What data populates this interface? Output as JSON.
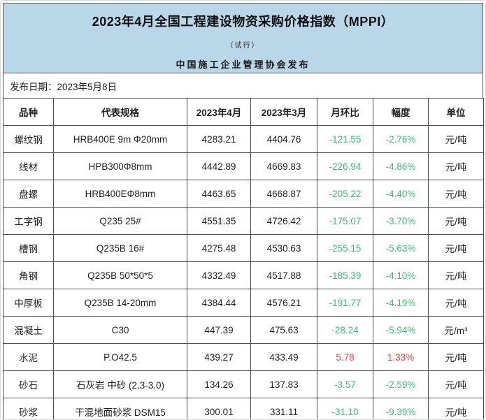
{
  "header": {
    "title": "2023年4月全国工程建设物资采购价格指数（MPPI）",
    "subtitle": "（试行）",
    "publisher": "中国施工企业管理协会发布",
    "banner_bg_color": "#bad6e9"
  },
  "release": {
    "date_line": "发布日期：2023年5月8日"
  },
  "table": {
    "columns": [
      "品种",
      "代表规格",
      "2023年4月",
      "2023年3月",
      "月环比",
      "幅度",
      "单位"
    ],
    "rows": [
      {
        "variety": "螺纹钢",
        "spec": "HRB400E 9m Φ20mm",
        "apr": "4283.21",
        "mar": "4404.76",
        "mom": "-121.55",
        "pct": "-2.76%",
        "unit": "元/吨",
        "trend": "down"
      },
      {
        "variety": "线材",
        "spec": "HPB300Φ8mm",
        "apr": "4442.89",
        "mar": "4669.83",
        "mom": "-226.94",
        "pct": "-4.86%",
        "unit": "元/吨",
        "trend": "down"
      },
      {
        "variety": "盘螺",
        "spec": "HRB400EΦ8mm",
        "apr": "4463.65",
        "mar": "4668.87",
        "mom": "-205.22",
        "pct": "-4.40%",
        "unit": "元/吨",
        "trend": "down"
      },
      {
        "variety": "工字钢",
        "spec": "Q235 25#",
        "apr": "4551.35",
        "mar": "4726.42",
        "mom": "-175.07",
        "pct": "-3.70%",
        "unit": "元/吨",
        "trend": "down"
      },
      {
        "variety": "槽钢",
        "spec": "Q235B 16#",
        "apr": "4275.48",
        "mar": "4530.63",
        "mom": "-255.15",
        "pct": "-5.63%",
        "unit": "元/吨",
        "trend": "down"
      },
      {
        "variety": "角钢",
        "spec": "Q235B 50*50*5",
        "apr": "4332.49",
        "mar": "4517.88",
        "mom": "-185.39",
        "pct": "-4.10%",
        "unit": "元/吨",
        "trend": "down"
      },
      {
        "variety": "中厚板",
        "spec": "Q235B 14-20mm",
        "apr": "4384.44",
        "mar": "4576.21",
        "mom": "-191.77",
        "pct": "-4.19%",
        "unit": "元/吨",
        "trend": "down"
      },
      {
        "variety": "混凝土",
        "spec": "C30",
        "apr": "447.39",
        "mar": "475.63",
        "mom": "-28.24",
        "pct": "-5.94%",
        "unit": "元/m³",
        "trend": "down"
      },
      {
        "variety": "水泥",
        "spec": "P.O42.5",
        "apr": "439.27",
        "mar": "433.49",
        "mom": "5.78",
        "pct": "1.33%",
        "unit": "元/吨",
        "trend": "up"
      },
      {
        "variety": "砂石",
        "spec": "石灰岩 中砂 (2.3-3.0)",
        "apr": "134.26",
        "mar": "137.83",
        "mom": "-3.57",
        "pct": "-2.59%",
        "unit": "元/吨",
        "trend": "down"
      },
      {
        "variety": "砂浆",
        "spec": "干混地面砂浆 DSM15",
        "apr": "300.01",
        "mar": "331.11",
        "mom": "-31.10",
        "pct": "-9.39%",
        "unit": "元/吨",
        "trend": "down"
      }
    ],
    "colors": {
      "down": "#3eba73",
      "up": "#fa3e3e",
      "text": "#1f1f1f"
    }
  }
}
